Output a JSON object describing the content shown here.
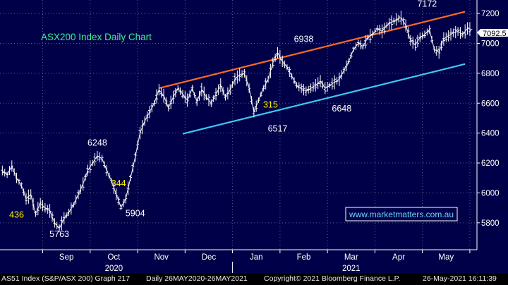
{
  "chart_data": {
    "type": "line",
    "style": "ohlc",
    "title": "ASX200 Index Daily Chart",
    "watermark": "www.marketmatters.com.au",
    "ylim": [
      5620,
      7290
    ],
    "yticks": [
      5800,
      6000,
      6200,
      6400,
      6600,
      6800,
      7000,
      7200
    ],
    "ytick_labels": [
      "5800",
      "6000",
      "6200",
      "6400",
      "6600",
      "6800",
      "7000",
      "7200"
    ],
    "last_price": 7092.5,
    "last_price_label": "7092.5",
    "months": [
      {
        "label": "Sep",
        "x": 0.5
      },
      {
        "label": "Oct",
        "x": 1.5
      },
      {
        "label": "Nov",
        "x": 2.5
      },
      {
        "label": "Dec",
        "x": 3.5
      },
      {
        "label": "Jan",
        "x": 4.5
      },
      {
        "label": "Feb",
        "x": 5.5
      },
      {
        "label": "Mar",
        "x": 6.5
      },
      {
        "label": "Apr",
        "x": 7.5
      },
      {
        "label": "May",
        "x": 8.5
      }
    ],
    "years": [
      {
        "label": "2020",
        "x": 1.5
      },
      {
        "label": "2021",
        "x": 6.5
      }
    ],
    "year_divider_x": 4,
    "xlim": [
      -0.9,
      9.15
    ],
    "series": [
      {
        "x": [
          -0.85,
          -0.75,
          -0.65,
          -0.55,
          -0.45,
          -0.35,
          -0.25,
          -0.15,
          -0.05,
          0.05,
          0.15,
          0.25,
          0.35,
          0.45,
          0.55,
          0.65,
          0.75,
          0.85,
          0.95,
          1.05,
          1.15,
          1.25,
          1.35,
          1.45,
          1.55,
          1.65,
          1.75,
          1.85,
          1.95,
          2.05,
          2.15,
          2.25,
          2.35,
          2.45,
          2.55,
          2.65,
          2.75,
          2.85,
          2.95,
          3.05,
          3.15,
          3.25,
          3.35,
          3.45,
          3.55,
          3.65,
          3.75,
          3.85,
          3.95,
          4.05,
          4.15,
          4.25,
          4.35,
          4.45,
          4.55,
          4.65,
          4.75,
          4.85,
          4.95,
          5.05,
          5.15,
          5.25,
          5.35,
          5.45,
          5.55,
          5.65,
          5.75,
          5.85,
          5.95,
          6.05,
          6.15,
          6.25,
          6.35,
          6.45,
          6.55,
          6.65,
          6.75,
          6.85,
          6.95,
          7.05,
          7.15,
          7.25,
          7.35,
          7.45,
          7.55,
          7.65,
          7.75,
          7.85,
          7.95,
          8.05,
          8.15,
          8.25,
          8.35,
          8.45,
          8.55,
          8.65,
          8.75,
          8.85,
          8.95,
          9.05
        ],
        "y": [
          6150,
          6120,
          6180,
          6100,
          6050,
          5960,
          5990,
          5860,
          5930,
          5900,
          5880,
          5800,
          5763,
          5830,
          5870,
          5920,
          5990,
          6060,
          6150,
          6200,
          6248,
          6230,
          6150,
          6080,
          5990,
          5904,
          5960,
          6100,
          6240,
          6400,
          6480,
          6540,
          6600,
          6690,
          6650,
          6570,
          6640,
          6700,
          6660,
          6620,
          6700,
          6610,
          6690,
          6640,
          6600,
          6660,
          6720,
          6640,
          6690,
          6760,
          6790,
          6800,
          6700,
          6540,
          6620,
          6700,
          6760,
          6870,
          6938,
          6880,
          6840,
          6780,
          6720,
          6700,
          6680,
          6700,
          6720,
          6748,
          6700,
          6720,
          6740,
          6760,
          6820,
          6880,
          6960,
          7000,
          6980,
          7040,
          7060,
          7100,
          7080,
          7120,
          7140,
          7160,
          7172,
          7120,
          7020,
          6990,
          7040,
          7060,
          7092.5,
          6960,
          6940,
          7030,
          7050,
          7070,
          7080,
          7060,
          7100,
          7092.5
        ]
      }
    ],
    "trend_lines": [
      {
        "name": "resistance",
        "color": "#ff6a1f",
        "x1": 2.45,
        "y1": 6700,
        "x2": 8.9,
        "y2": 7212
      },
      {
        "name": "support",
        "color": "#3dc8f2",
        "x1": 2.95,
        "y1": 6395,
        "x2": 8.9,
        "y2": 6862
      }
    ],
    "annotations": [
      {
        "text": "436",
        "x": -0.55,
        "y": 5835,
        "color": "#ffee00"
      },
      {
        "text": "5763",
        "x": 0.35,
        "y": 5705,
        "color": "#ffffff"
      },
      {
        "text": "6248",
        "x": 1.15,
        "y": 6315,
        "color": "#ffffff"
      },
      {
        "text": "344",
        "x": 1.6,
        "y": 6045,
        "color": "#ffee00"
      },
      {
        "text": "5904",
        "x": 1.95,
        "y": 5845,
        "color": "#ffffff"
      },
      {
        "text": "315",
        "x": 4.8,
        "y": 6570,
        "color": "#ffee00"
      },
      {
        "text": "6517",
        "x": 4.95,
        "y": 6410,
        "color": "#ffffff"
      },
      {
        "text": "6938",
        "x": 5.5,
        "y": 7010,
        "color": "#ffffff"
      },
      {
        "text": "6648",
        "x": 6.3,
        "y": 6545,
        "color": "#ffffff"
      },
      {
        "text": "7172",
        "x": 8.1,
        "y": 7245,
        "color": "#ffffff"
      }
    ],
    "colors": {
      "background": "#000048",
      "price": "#ffffff",
      "grid": "#5a5a90",
      "title": "#3cf08a",
      "watermark": "#6fd3ff"
    }
  },
  "footer": {
    "left": "AS51 Index (S&P/ASX 200) Graph 217",
    "mid": "Daily 26MAY2020-26MAY2021",
    "copyright": "Copyright© 2021 Bloomberg Finance L.P.",
    "date": "26-May-2021 16:11:39"
  }
}
